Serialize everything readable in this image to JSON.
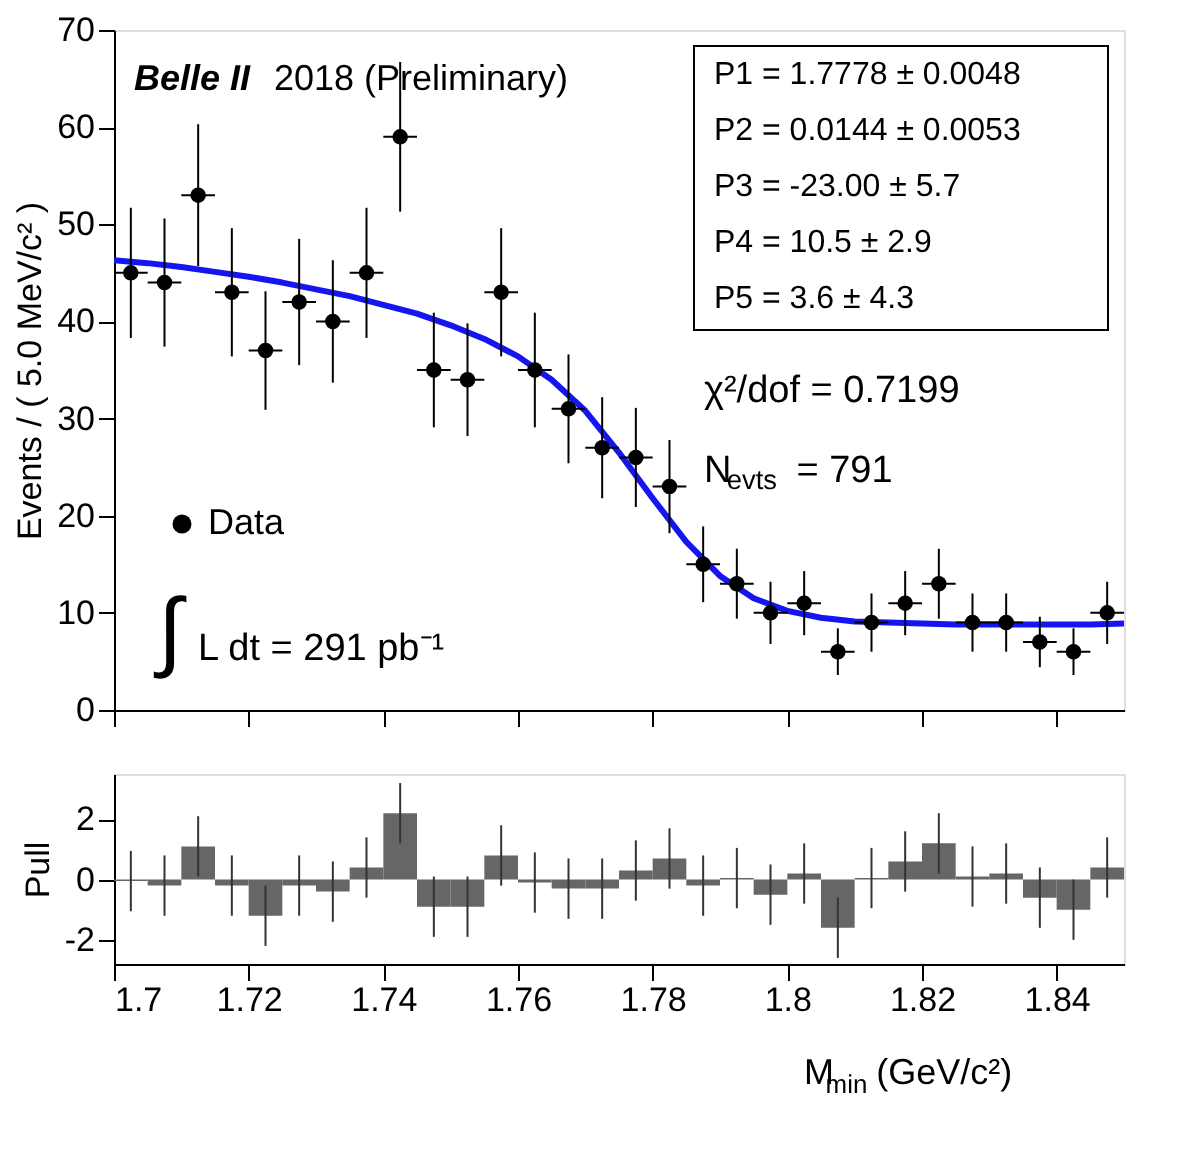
{
  "chart_data": [
    {
      "type": "scatter",
      "ylabel": "Events / ( 5.0 MeV/c² )",
      "xlim": [
        1.7,
        1.85
      ],
      "xticks": [
        1.7,
        1.72,
        1.74,
        1.76,
        1.78,
        1.8,
        1.82,
        1.84
      ],
      "ylim": [
        0,
        70
      ],
      "yticks": [
        0,
        10,
        20,
        30,
        40,
        50,
        60,
        70
      ],
      "tick_labels": "y",
      "grid": false,
      "legend": "left",
      "x": [
        1.7025,
        1.7075,
        1.7125,
        1.7175,
        1.7225,
        1.7275,
        1.7325,
        1.7375,
        1.7425,
        1.7475,
        1.7525,
        1.7575,
        1.7625,
        1.7675,
        1.7725,
        1.7775,
        1.7825,
        1.7875,
        1.7925,
        1.7975,
        1.8025,
        1.8075,
        1.8125,
        1.8175,
        1.8225,
        1.8275,
        1.8325,
        1.8375,
        1.8425,
        1.8475
      ],
      "series": [
        {
          "name": "Data",
          "color": "#000000",
          "marker": "circle",
          "values": [
            45,
            44,
            53,
            43,
            37,
            42,
            40,
            45,
            59,
            35,
            34,
            43,
            35,
            31,
            27,
            26,
            23,
            15,
            13,
            10,
            11,
            6,
            9,
            11,
            13,
            9,
            9,
            7,
            6,
            10
          ],
          "errors": [
            6.7,
            6.6,
            7.3,
            6.6,
            6.1,
            6.5,
            6.3,
            6.7,
            7.7,
            5.9,
            5.8,
            6.6,
            5.9,
            5.6,
            5.2,
            5.1,
            4.8,
            3.9,
            3.6,
            3.2,
            3.3,
            2.4,
            3,
            3.3,
            3.6,
            3,
            3,
            2.6,
            2.4,
            3.2
          ],
          "xerrors": [
            0.0025,
            0.0025,
            0.0025,
            0.0025,
            0.0025,
            0.0025,
            0.0025,
            0.0025,
            0.0025,
            0.0025,
            0.0025,
            0.0025,
            0.0025,
            0.0025,
            0.0025,
            0.0025,
            0.0025,
            0.0025,
            0.0025,
            0.0025,
            0.0025,
            0.0025,
            0.0025,
            0.0025,
            0.0025,
            0.0025,
            0.0025,
            0.0025,
            0.0025,
            0.0025
          ]
        },
        {
          "type": "line",
          "color": "#1515f0",
          "line_style": "solid",
          "x": [
            1.7,
            1.705,
            1.71,
            1.715,
            1.72,
            1.725,
            1.73,
            1.735,
            1.74,
            1.745,
            1.75,
            1.755,
            1.76,
            1.765,
            1.77,
            1.775,
            1.78,
            1.785,
            1.79,
            1.795,
            1.8,
            1.805,
            1.81,
            1.815,
            1.82,
            1.825,
            1.83,
            1.835,
            1.84,
            1.845,
            1.85
          ],
          "values": [
            46.3,
            46,
            45.6,
            45.1,
            44.6,
            44,
            43.3,
            42.6,
            41.7,
            40.8,
            39.6,
            38.2,
            36.4,
            34,
            30.8,
            26.5,
            21.8,
            17.3,
            13.8,
            11.5,
            10.2,
            9.5,
            9.1,
            9,
            8.9,
            8.8,
            8.8,
            8.8,
            8.8,
            8.8,
            8.9
          ]
        }
      ],
      "annotations": [
        "Belle II",
        "2018 (Preliminary)",
        "P1 =  1.7778 ± 0.0048",
        "P2 =  0.0144 ± 0.0053",
        "P3 = -23.00 ± 5.7",
        "P4 =  10.5 ± 2.9",
        "P5 =  3.6 ± 4.3",
        "χ²/dof = 0.7199",
        "N$_{evts}$ = 791",
        "∫",
        "L dt = 291 pb⁻¹"
      ]
    },
    {
      "type": "histogram",
      "ylabel": "Pull",
      "xlabel": "M$_{min}$ (GeV/c²)",
      "xlim": [
        1.7,
        1.85
      ],
      "xticks": [
        {
          "value": 1.7,
          "label": "1.7"
        },
        1.72,
        1.74,
        1.76,
        1.78,
        {
          "value": 1.8,
          "label": "1.8"
        },
        1.82,
        1.84
      ],
      "ylim": [
        -2.8,
        3.5
      ],
      "yticks": [
        -2,
        0,
        2
      ],
      "grid": false,
      "color": "#666666",
      "bins": [
        1.7,
        1.705,
        1.71,
        1.715,
        1.72,
        1.725,
        1.73,
        1.735,
        1.74,
        1.745,
        1.75,
        1.755,
        1.76,
        1.765,
        1.77,
        1.775,
        1.78,
        1.785,
        1.79,
        1.795,
        1.8,
        1.805,
        1.81,
        1.815,
        1.82,
        1.825,
        1.83,
        1.835,
        1.84,
        1.845,
        1.85
      ],
      "values": [
        -0.05,
        -0.2,
        1.1,
        -0.2,
        -1.2,
        -0.2,
        -0.4,
        0.4,
        2.2,
        -0.9,
        -0.9,
        0.8,
        -0.1,
        -0.3,
        -0.3,
        0.3,
        0.7,
        -0.2,
        0.05,
        -0.5,
        0.2,
        -1.6,
        0.05,
        0.6,
        1.2,
        0.1,
        0.2,
        -0.6,
        -1.0,
        0.4
      ],
      "errors": [
        1,
        1,
        1,
        1,
        1,
        1,
        1,
        1,
        1,
        1,
        1,
        1,
        1,
        1,
        1,
        1,
        1,
        1,
        1,
        1,
        1,
        1,
        1,
        1,
        1,
        1,
        1,
        1,
        1,
        1
      ]
    }
  ]
}
